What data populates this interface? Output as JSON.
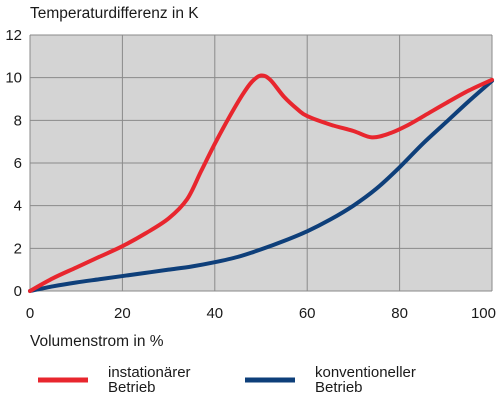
{
  "chart_data": {
    "type": "line",
    "ylabel": "Temperaturdifferenz in K",
    "xlabel": "Volumenstrom in %",
    "xlim": [
      0,
      100
    ],
    "ylim": [
      0,
      12
    ],
    "x_ticks": [
      "0",
      "20",
      "40",
      "60",
      "80",
      "100"
    ],
    "y_ticks": [
      "0",
      "2",
      "4",
      "6",
      "8",
      "10",
      "12"
    ],
    "grid": true,
    "legend_position": "bottom",
    "series": [
      {
        "name_lines": [
          "instationärer",
          "Betrieb"
        ],
        "color": "#e8262e",
        "x": [
          0,
          5,
          10,
          15,
          20,
          25,
          30,
          34,
          37,
          40,
          43,
          46,
          48,
          50,
          52,
          55,
          58,
          60,
          65,
          70,
          74,
          78,
          82,
          86,
          90,
          95,
          100
        ],
        "y": [
          0,
          0.6,
          1.1,
          1.6,
          2.1,
          2.7,
          3.4,
          4.3,
          5.6,
          6.9,
          8.1,
          9.2,
          9.8,
          10.1,
          9.9,
          9.1,
          8.5,
          8.2,
          7.8,
          7.5,
          7.2,
          7.4,
          7.8,
          8.3,
          8.8,
          9.4,
          9.9
        ]
      },
      {
        "name_lines": [
          "konventioneller",
          "Betrieb"
        ],
        "color": "#0e3f7a",
        "x": [
          0,
          5,
          10,
          15,
          20,
          25,
          30,
          35,
          40,
          45,
          50,
          55,
          60,
          65,
          70,
          75,
          80,
          85,
          90,
          95,
          100
        ],
        "y": [
          0,
          0.22,
          0.4,
          0.55,
          0.7,
          0.85,
          1.0,
          1.15,
          1.35,
          1.6,
          1.95,
          2.35,
          2.8,
          3.35,
          4.0,
          4.8,
          5.8,
          6.9,
          7.9,
          8.9,
          9.85
        ]
      }
    ]
  }
}
